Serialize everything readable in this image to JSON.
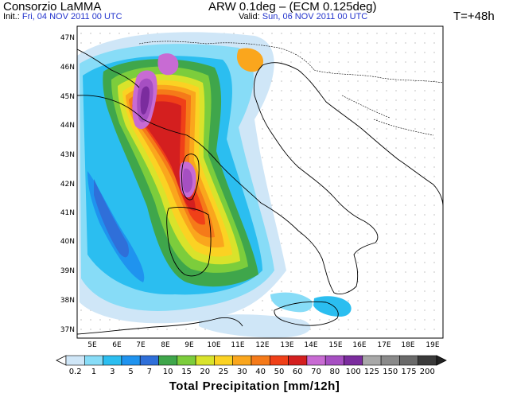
{
  "header": {
    "org": "Consorzio LaMMA",
    "init_label": "Init.:",
    "init_value": "Fri, 04 NOV 2011  00 UTC",
    "model": "ARW 0.1deg – (ECM 0.125deg)",
    "valid_label": "Valid:",
    "valid_value": "Sun, 06 NOV 2011  00 UTC",
    "lead_time": "T=+48h"
  },
  "map": {
    "lat_labels": [
      "47N",
      "46N",
      "45N",
      "44N",
      "43N",
      "42N",
      "41N",
      "40N",
      "39N",
      "38N",
      "37N"
    ],
    "lon_labels": [
      "5E",
      "6E",
      "7E",
      "8E",
      "9E",
      "10E",
      "11E",
      "12E",
      "13E",
      "14E",
      "15E",
      "16E",
      "17E",
      "18E",
      "19E"
    ]
  },
  "colorbar": {
    "title": "Total Precipitation [mm/12h]",
    "labels": [
      "0.2",
      "1",
      "3",
      "5",
      "7",
      "10",
      "15",
      "20",
      "25",
      "30",
      "40",
      "50",
      "60",
      "70",
      "80",
      "100",
      "125",
      "150",
      "175",
      "200"
    ],
    "colors": [
      "#cfe6f7",
      "#87dcf7",
      "#2bbef0",
      "#1f93ef",
      "#2f6fd9",
      "#3fa64b",
      "#7ccd3c",
      "#d9e32b",
      "#fbd223",
      "#faa61d",
      "#f57a19",
      "#f04018",
      "#d41f1f",
      "#c86bd3",
      "#a64fc2",
      "#7b2c9e",
      "#a8a8a8",
      "#8a8a8a",
      "#6a6a6a",
      "#3a3a3a"
    ]
  },
  "colors": {
    "accent_text": "#2233cc"
  }
}
